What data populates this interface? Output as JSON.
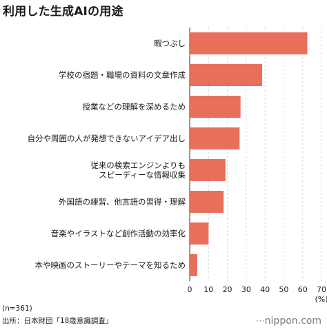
{
  "chart_data": {
    "type": "bar",
    "orientation": "horizontal",
    "title": "利用した生成AIの用途",
    "categories": [
      [
        "暇つぶし"
      ],
      [
        "学校の宿題・職場の資料の文章作成"
      ],
      [
        "授業などの理解を深めるため"
      ],
      [
        "自分や周囲の人が発想できないアイデア出し"
      ],
      [
        "従来の検索エンジンよりも",
        "スピーディーな情報収集"
      ],
      [
        "外国語の練習、他言語の習得・理解"
      ],
      [
        "音楽やイラストなど創作活動の効率化"
      ],
      [
        "本や映画のストーリーやテーマを知るため"
      ]
    ],
    "values": [
      62.5,
      38.5,
      27,
      26.5,
      19,
      18,
      10,
      4
    ],
    "xlim": [
      0,
      70
    ],
    "xticks": [
      "0",
      "10",
      "20",
      "30",
      "40",
      "50",
      "60",
      "70"
    ],
    "xunit": "(%)",
    "grid": true,
    "bar_color": "#e8705a"
  },
  "footnote": {
    "sample": "(n=361)",
    "source": "出所：日本財団「18歳意識調査」"
  },
  "brand": "nippon.com"
}
